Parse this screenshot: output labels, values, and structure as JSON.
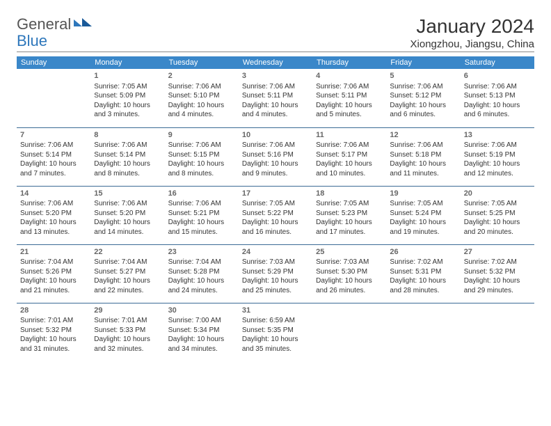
{
  "logo": {
    "part1": "General",
    "part2": "Blue"
  },
  "title": "January 2024",
  "location": "Xiongzhou, Jiangsu, China",
  "colors": {
    "header_bg": "#3a87c9",
    "header_text": "#ffffff",
    "row_border": "#3a6a95",
    "logo_blue": "#2e77bb",
    "logo_grey": "#555555",
    "text": "#333333"
  },
  "daynames": [
    "Sunday",
    "Monday",
    "Tuesday",
    "Wednesday",
    "Thursday",
    "Friday",
    "Saturday"
  ],
  "weeks": [
    [
      null,
      {
        "n": "1",
        "sr": "Sunrise: 7:05 AM",
        "ss": "Sunset: 5:09 PM",
        "d1": "Daylight: 10 hours",
        "d2": "and 3 minutes."
      },
      {
        "n": "2",
        "sr": "Sunrise: 7:06 AM",
        "ss": "Sunset: 5:10 PM",
        "d1": "Daylight: 10 hours",
        "d2": "and 4 minutes."
      },
      {
        "n": "3",
        "sr": "Sunrise: 7:06 AM",
        "ss": "Sunset: 5:11 PM",
        "d1": "Daylight: 10 hours",
        "d2": "and 4 minutes."
      },
      {
        "n": "4",
        "sr": "Sunrise: 7:06 AM",
        "ss": "Sunset: 5:11 PM",
        "d1": "Daylight: 10 hours",
        "d2": "and 5 minutes."
      },
      {
        "n": "5",
        "sr": "Sunrise: 7:06 AM",
        "ss": "Sunset: 5:12 PM",
        "d1": "Daylight: 10 hours",
        "d2": "and 6 minutes."
      },
      {
        "n": "6",
        "sr": "Sunrise: 7:06 AM",
        "ss": "Sunset: 5:13 PM",
        "d1": "Daylight: 10 hours",
        "d2": "and 6 minutes."
      }
    ],
    [
      {
        "n": "7",
        "sr": "Sunrise: 7:06 AM",
        "ss": "Sunset: 5:14 PM",
        "d1": "Daylight: 10 hours",
        "d2": "and 7 minutes."
      },
      {
        "n": "8",
        "sr": "Sunrise: 7:06 AM",
        "ss": "Sunset: 5:14 PM",
        "d1": "Daylight: 10 hours",
        "d2": "and 8 minutes."
      },
      {
        "n": "9",
        "sr": "Sunrise: 7:06 AM",
        "ss": "Sunset: 5:15 PM",
        "d1": "Daylight: 10 hours",
        "d2": "and 8 minutes."
      },
      {
        "n": "10",
        "sr": "Sunrise: 7:06 AM",
        "ss": "Sunset: 5:16 PM",
        "d1": "Daylight: 10 hours",
        "d2": "and 9 minutes."
      },
      {
        "n": "11",
        "sr": "Sunrise: 7:06 AM",
        "ss": "Sunset: 5:17 PM",
        "d1": "Daylight: 10 hours",
        "d2": "and 10 minutes."
      },
      {
        "n": "12",
        "sr": "Sunrise: 7:06 AM",
        "ss": "Sunset: 5:18 PM",
        "d1": "Daylight: 10 hours",
        "d2": "and 11 minutes."
      },
      {
        "n": "13",
        "sr": "Sunrise: 7:06 AM",
        "ss": "Sunset: 5:19 PM",
        "d1": "Daylight: 10 hours",
        "d2": "and 12 minutes."
      }
    ],
    [
      {
        "n": "14",
        "sr": "Sunrise: 7:06 AM",
        "ss": "Sunset: 5:20 PM",
        "d1": "Daylight: 10 hours",
        "d2": "and 13 minutes."
      },
      {
        "n": "15",
        "sr": "Sunrise: 7:06 AM",
        "ss": "Sunset: 5:20 PM",
        "d1": "Daylight: 10 hours",
        "d2": "and 14 minutes."
      },
      {
        "n": "16",
        "sr": "Sunrise: 7:06 AM",
        "ss": "Sunset: 5:21 PM",
        "d1": "Daylight: 10 hours",
        "d2": "and 15 minutes."
      },
      {
        "n": "17",
        "sr": "Sunrise: 7:05 AM",
        "ss": "Sunset: 5:22 PM",
        "d1": "Daylight: 10 hours",
        "d2": "and 16 minutes."
      },
      {
        "n": "18",
        "sr": "Sunrise: 7:05 AM",
        "ss": "Sunset: 5:23 PM",
        "d1": "Daylight: 10 hours",
        "d2": "and 17 minutes."
      },
      {
        "n": "19",
        "sr": "Sunrise: 7:05 AM",
        "ss": "Sunset: 5:24 PM",
        "d1": "Daylight: 10 hours",
        "d2": "and 19 minutes."
      },
      {
        "n": "20",
        "sr": "Sunrise: 7:05 AM",
        "ss": "Sunset: 5:25 PM",
        "d1": "Daylight: 10 hours",
        "d2": "and 20 minutes."
      }
    ],
    [
      {
        "n": "21",
        "sr": "Sunrise: 7:04 AM",
        "ss": "Sunset: 5:26 PM",
        "d1": "Daylight: 10 hours",
        "d2": "and 21 minutes."
      },
      {
        "n": "22",
        "sr": "Sunrise: 7:04 AM",
        "ss": "Sunset: 5:27 PM",
        "d1": "Daylight: 10 hours",
        "d2": "and 22 minutes."
      },
      {
        "n": "23",
        "sr": "Sunrise: 7:04 AM",
        "ss": "Sunset: 5:28 PM",
        "d1": "Daylight: 10 hours",
        "d2": "and 24 minutes."
      },
      {
        "n": "24",
        "sr": "Sunrise: 7:03 AM",
        "ss": "Sunset: 5:29 PM",
        "d1": "Daylight: 10 hours",
        "d2": "and 25 minutes."
      },
      {
        "n": "25",
        "sr": "Sunrise: 7:03 AM",
        "ss": "Sunset: 5:30 PM",
        "d1": "Daylight: 10 hours",
        "d2": "and 26 minutes."
      },
      {
        "n": "26",
        "sr": "Sunrise: 7:02 AM",
        "ss": "Sunset: 5:31 PM",
        "d1": "Daylight: 10 hours",
        "d2": "and 28 minutes."
      },
      {
        "n": "27",
        "sr": "Sunrise: 7:02 AM",
        "ss": "Sunset: 5:32 PM",
        "d1": "Daylight: 10 hours",
        "d2": "and 29 minutes."
      }
    ],
    [
      {
        "n": "28",
        "sr": "Sunrise: 7:01 AM",
        "ss": "Sunset: 5:32 PM",
        "d1": "Daylight: 10 hours",
        "d2": "and 31 minutes."
      },
      {
        "n": "29",
        "sr": "Sunrise: 7:01 AM",
        "ss": "Sunset: 5:33 PM",
        "d1": "Daylight: 10 hours",
        "d2": "and 32 minutes."
      },
      {
        "n": "30",
        "sr": "Sunrise: 7:00 AM",
        "ss": "Sunset: 5:34 PM",
        "d1": "Daylight: 10 hours",
        "d2": "and 34 minutes."
      },
      {
        "n": "31",
        "sr": "Sunrise: 6:59 AM",
        "ss": "Sunset: 5:35 PM",
        "d1": "Daylight: 10 hours",
        "d2": "and 35 minutes."
      },
      null,
      null,
      null
    ]
  ]
}
